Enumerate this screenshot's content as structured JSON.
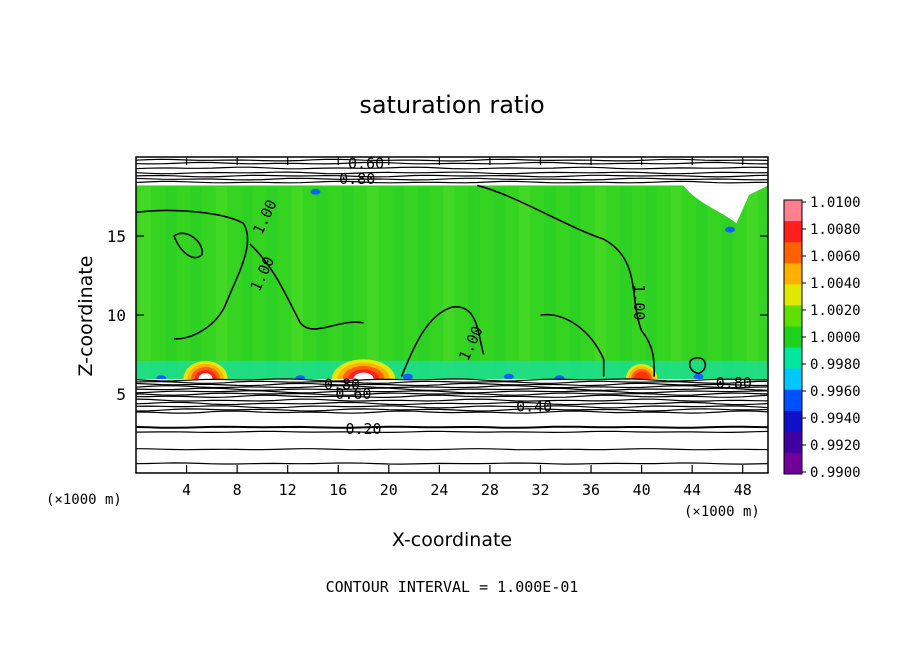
{
  "chart_data": {
    "type": "heatmap",
    "title": "saturation ratio",
    "xlabel": "X-coordinate",
    "ylabel": "Z-coordinate",
    "x_unit_label": "(×1000 m)",
    "y_unit_label": "(×1000 m)",
    "xlim": [
      0,
      50
    ],
    "ylim": [
      0,
      20
    ],
    "x_ticks": [
      4,
      8,
      12,
      16,
      20,
      24,
      28,
      32,
      36,
      40,
      44,
      48
    ],
    "y_ticks": [
      5,
      10,
      15
    ],
    "colorbar": {
      "min": 0.99,
      "max": 1.01,
      "tick_labels": [
        "1.0100",
        "1.0080",
        "1.0060",
        "1.0040",
        "1.0020",
        "1.0000",
        "0.9980",
        "0.9960",
        "0.9940",
        "0.9920",
        "0.9900"
      ],
      "colors": [
        "#ff7f8f",
        "#ff1f1f",
        "#ff6000",
        "#ffb000",
        "#e0e800",
        "#60e000",
        "#1ed21e",
        "#00e8a0",
        "#00c8ff",
        "#0050ff",
        "#1010c8",
        "#4000a0",
        "#700098"
      ]
    },
    "contour_labels": [
      {
        "text": "0.60",
        "x": 18.2,
        "z": 19.6
      },
      {
        "text": "0.80",
        "x": 17.5,
        "z": 18.6
      },
      {
        "text": "1.00",
        "x": 10.2,
        "z": 16.2
      },
      {
        "text": "1.00",
        "x": 10.0,
        "z": 12.6
      },
      {
        "text": "1.00",
        "x": 39.8,
        "z": 10.8
      },
      {
        "text": "1.00",
        "x": 26.5,
        "z": 8.2
      },
      {
        "text": "0.80",
        "x": 16.3,
        "z": 5.6
      },
      {
        "text": "0.60",
        "x": 17.2,
        "z": 5.0
      },
      {
        "text": "0.80",
        "x": 47.3,
        "z": 5.7
      },
      {
        "text": "0.40",
        "x": 31.5,
        "z": 4.2
      },
      {
        "text": "0.20",
        "x": 18.0,
        "z": 2.8
      }
    ],
    "warm_spots": [
      {
        "x": 5.5,
        "z": 6.5,
        "w": 3.5,
        "peak": 1.01
      },
      {
        "x": 18.0,
        "z": 6.6,
        "w": 5.0,
        "peak": 1.01
      },
      {
        "x": 40.0,
        "z": 6.3,
        "w": 2.5,
        "peak": 1.006
      }
    ],
    "footer": "CONTOUR INTERVAL = 1.000E-01"
  }
}
